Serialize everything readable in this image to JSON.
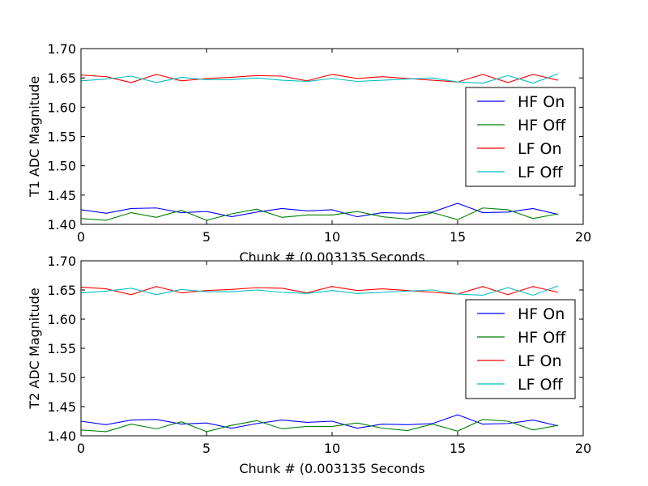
{
  "chart_data": [
    {
      "type": "line",
      "xlabel": "Chunk # (0.003135 Seconds",
      "ylabel": "T1 ADC Magnitude",
      "xlim": [
        0,
        20
      ],
      "ylim": [
        1.4,
        1.7
      ],
      "xticks": [
        "0",
        "5",
        "10",
        "15",
        "20"
      ],
      "yticks": [
        "1.40",
        "1.45",
        "1.50",
        "1.55",
        "1.60",
        "1.65",
        "1.70"
      ],
      "legend_position": "right",
      "x": [
        0,
        1,
        2,
        3,
        4,
        5,
        6,
        7,
        8,
        9,
        10,
        11,
        12,
        13,
        14,
        15,
        16,
        17,
        18,
        19
      ],
      "series": [
        {
          "name": "HF On",
          "color": "#0000ff",
          "values": [
            1.425,
            1.419,
            1.427,
            1.428,
            1.42,
            1.422,
            1.413,
            1.421,
            1.427,
            1.423,
            1.425,
            1.413,
            1.42,
            1.419,
            1.421,
            1.436,
            1.42,
            1.421,
            1.427,
            1.417
          ]
        },
        {
          "name": "HF Off",
          "color": "#008000",
          "values": [
            1.41,
            1.407,
            1.42,
            1.412,
            1.424,
            1.407,
            1.418,
            1.426,
            1.412,
            1.416,
            1.416,
            1.422,
            1.413,
            1.409,
            1.42,
            1.408,
            1.428,
            1.425,
            1.41,
            1.418
          ]
        },
        {
          "name": "LF On",
          "color": "#ff0000",
          "values": [
            1.655,
            1.652,
            1.642,
            1.656,
            1.645,
            1.649,
            1.651,
            1.654,
            1.653,
            1.645,
            1.656,
            1.649,
            1.652,
            1.649,
            1.646,
            1.643,
            1.656,
            1.642,
            1.656,
            1.646
          ]
        },
        {
          "name": "LF Off",
          "color": "#00bfbf",
          "values": [
            1.645,
            1.648,
            1.653,
            1.642,
            1.651,
            1.647,
            1.647,
            1.65,
            1.646,
            1.644,
            1.649,
            1.644,
            1.646,
            1.648,
            1.65,
            1.643,
            1.641,
            1.654,
            1.641,
            1.657
          ]
        }
      ]
    },
    {
      "type": "line",
      "xlabel": "Chunk # (0.003135 Seconds",
      "ylabel": "T2 ADC Magnitude",
      "xlim": [
        0,
        20
      ],
      "ylim": [
        1.4,
        1.7
      ],
      "xticks": [
        "0",
        "5",
        "10",
        "15",
        "20"
      ],
      "yticks": [
        "1.40",
        "1.45",
        "1.50",
        "1.55",
        "1.60",
        "1.65",
        "1.70"
      ],
      "legend_position": "right",
      "x": [
        0,
        1,
        2,
        3,
        4,
        5,
        6,
        7,
        8,
        9,
        10,
        11,
        12,
        13,
        14,
        15,
        16,
        17,
        18,
        19
      ],
      "series": [
        {
          "name": "HF On",
          "color": "#0000ff",
          "values": [
            1.425,
            1.419,
            1.427,
            1.428,
            1.42,
            1.422,
            1.413,
            1.421,
            1.427,
            1.423,
            1.425,
            1.413,
            1.42,
            1.419,
            1.421,
            1.436,
            1.42,
            1.421,
            1.427,
            1.417
          ]
        },
        {
          "name": "HF Off",
          "color": "#008000",
          "values": [
            1.41,
            1.407,
            1.42,
            1.412,
            1.424,
            1.407,
            1.418,
            1.426,
            1.412,
            1.416,
            1.416,
            1.422,
            1.413,
            1.409,
            1.42,
            1.408,
            1.428,
            1.425,
            1.41,
            1.418
          ]
        },
        {
          "name": "LF On",
          "color": "#ff0000",
          "values": [
            1.655,
            1.652,
            1.642,
            1.656,
            1.645,
            1.649,
            1.651,
            1.654,
            1.653,
            1.645,
            1.656,
            1.649,
            1.652,
            1.649,
            1.646,
            1.643,
            1.656,
            1.642,
            1.656,
            1.646
          ]
        },
        {
          "name": "LF Off",
          "color": "#00bfbf",
          "values": [
            1.645,
            1.648,
            1.653,
            1.642,
            1.651,
            1.647,
            1.647,
            1.65,
            1.646,
            1.644,
            1.649,
            1.644,
            1.646,
            1.648,
            1.65,
            1.643,
            1.641,
            1.654,
            1.641,
            1.657
          ]
        }
      ]
    }
  ]
}
